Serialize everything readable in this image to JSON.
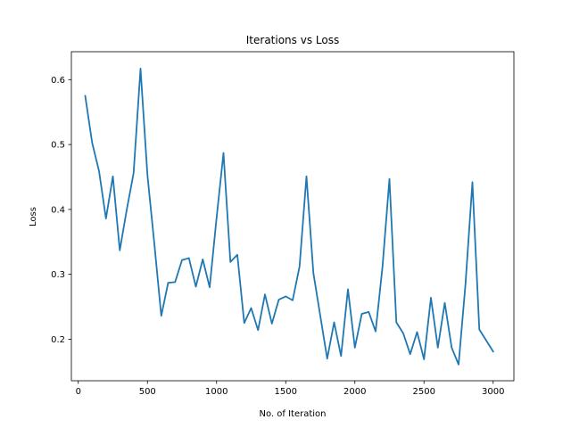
{
  "chart_data": {
    "type": "line",
    "title": "Iterations vs Loss",
    "xlabel": "No. of Iteration",
    "ylabel": "Loss",
    "xlim": [
      -50,
      3150
    ],
    "ylim": [
      0.136,
      0.643
    ],
    "xticks": [
      0,
      500,
      1000,
      1500,
      2000,
      2500,
      3000
    ],
    "xtick_labels": [
      "0",
      "500",
      "1000",
      "1500",
      "2000",
      "2500",
      "3000"
    ],
    "yticks": [
      0.2,
      0.3,
      0.4,
      0.5,
      0.6
    ],
    "ytick_labels": [
      "0.2",
      "0.3",
      "0.4",
      "0.5",
      "0.6"
    ],
    "grid": false,
    "series": [
      {
        "color": "#1f77b4",
        "x": [
          50,
          100,
          150,
          200,
          250,
          300,
          350,
          400,
          450,
          500,
          550,
          600,
          650,
          700,
          750,
          800,
          850,
          900,
          950,
          1000,
          1050,
          1100,
          1150,
          1200,
          1250,
          1300,
          1350,
          1400,
          1450,
          1500,
          1550,
          1600,
          1650,
          1700,
          1750,
          1800,
          1850,
          1900,
          1950,
          2000,
          2050,
          2100,
          2150,
          2200,
          2250,
          2300,
          2350,
          2400,
          2450,
          2500,
          2550,
          2600,
          2650,
          2700,
          2750,
          2800,
          2850,
          2900,
          2950,
          3000
        ],
        "y": [
          0.575,
          0.503,
          0.459,
          0.386,
          0.451,
          0.337,
          0.399,
          0.456,
          0.617,
          0.453,
          0.347,
          0.236,
          0.287,
          0.288,
          0.322,
          0.325,
          0.281,
          0.323,
          0.28,
          0.387,
          0.487,
          0.319,
          0.33,
          0.225,
          0.248,
          0.214,
          0.269,
          0.224,
          0.261,
          0.266,
          0.26,
          0.312,
          0.451,
          0.302,
          0.236,
          0.17,
          0.226,
          0.174,
          0.277,
          0.187,
          0.239,
          0.242,
          0.212,
          0.312,
          0.447,
          0.226,
          0.209,
          0.177,
          0.211,
          0.169,
          0.264,
          0.187,
          0.256,
          0.187,
          0.161,
          0.285,
          0.442,
          0.215,
          0.198,
          0.181
        ]
      }
    ]
  }
}
